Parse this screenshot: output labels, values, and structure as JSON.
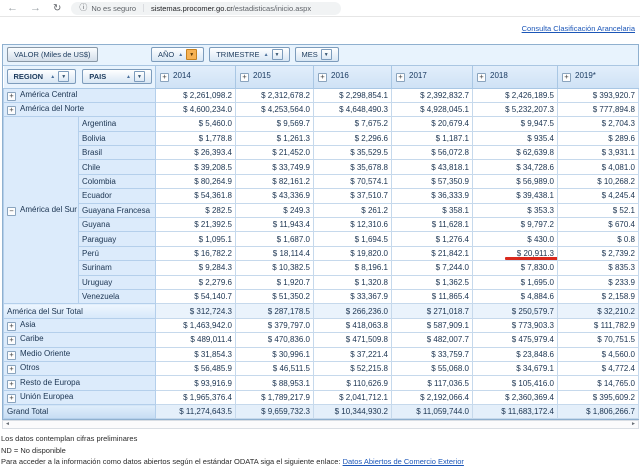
{
  "browser": {
    "security_label": "No es seguro",
    "url_domain": "sistemas.procomer.go.cr",
    "url_path": "/estadisticas/inicio.aspx"
  },
  "top_link": {
    "label": "Consulta Clasificación Arancelaria"
  },
  "filters": {
    "measure_button": "VALOR (Miles de US$)",
    "column_fields": [
      {
        "label": "AÑO",
        "sorted": true,
        "filter_active": true
      },
      {
        "label": "TRIMESTRE",
        "sorted": true,
        "filter_active": false
      },
      {
        "label": "MES",
        "sorted": false,
        "filter_active": false
      }
    ],
    "row_fields": [
      {
        "label": "REGION",
        "sorted": true
      },
      {
        "label": "PAIS",
        "sorted": true
      }
    ]
  },
  "pivot": {
    "columns": [
      "2014",
      "2015",
      "2016",
      "2017",
      "2018",
      "2019*"
    ],
    "rows": [
      {
        "type": "region",
        "label": "América Central",
        "expand_icon": "plus",
        "values": [
          "$ 2,261,098.2",
          "$ 2,312,678.2",
          "$ 2,298,854.1",
          "$ 2,392,832.7",
          "$ 2,426,189.5",
          "$ 393,920.7"
        ]
      },
      {
        "type": "region",
        "label": "América del Norte",
        "expand_icon": "plus",
        "values": [
          "$ 4,600,234.0",
          "$ 4,253,564.0",
          "$ 4,648,490.3",
          "$ 4,928,045.1",
          "$ 5,232,207.3",
          "$ 777,894.8"
        ]
      },
      {
        "type": "country",
        "label": "Argentina",
        "region_cell": {
          "label": "América del Sur",
          "expand_icon": "minus",
          "rowspan": 13
        },
        "values": [
          "$ 5,460.0",
          "$ 9,569.7",
          "$ 7,675.2",
          "$ 20,679.4",
          "$ 9,947.5",
          "$ 2,704.3"
        ]
      },
      {
        "type": "country",
        "label": "Bolivia",
        "values": [
          "$ 1,778.8",
          "$ 1,261.3",
          "$ 2,296.6",
          "$ 1,187.1",
          "$ 935.4",
          "$ 289.6"
        ]
      },
      {
        "type": "country",
        "label": "Brasil",
        "values": [
          "$ 26,393.4",
          "$ 21,452.0",
          "$ 35,529.5",
          "$ 56,072.8",
          "$ 62,639.8",
          "$ 3,931.1"
        ]
      },
      {
        "type": "country",
        "label": "Chile",
        "values": [
          "$ 39,208.5",
          "$ 33,749.9",
          "$ 35,678.8",
          "$ 43,818.1",
          "$ 34,728.6",
          "$ 4,081.0"
        ]
      },
      {
        "type": "country",
        "label": "Colombia",
        "values": [
          "$ 80,264.9",
          "$ 82,161.2",
          "$ 70,574.1",
          "$ 57,350.9",
          "$ 56,989.0",
          "$ 10,268.2"
        ]
      },
      {
        "type": "country",
        "label": "Ecuador",
        "values": [
          "$ 54,361.8",
          "$ 43,336.9",
          "$ 37,510.7",
          "$ 36,333.9",
          "$ 39,438.1",
          "$ 4,245.4"
        ]
      },
      {
        "type": "country",
        "label": "Guayana Francesa",
        "values": [
          "$ 282.5",
          "$ 249.3",
          "$ 261.2",
          "$ 358.1",
          "$ 353.3",
          "$ 52.1"
        ]
      },
      {
        "type": "country",
        "label": "Guyana",
        "values": [
          "$ 21,392.5",
          "$ 11,943.4",
          "$ 12,310.6",
          "$ 11,628.1",
          "$ 9,797.2",
          "$ 670.4"
        ]
      },
      {
        "type": "country",
        "label": "Paraguay",
        "values": [
          "$ 1,095.1",
          "$ 1,687.0",
          "$ 1,694.5",
          "$ 1,276.4",
          "$ 430.0",
          "$ 0.8"
        ]
      },
      {
        "type": "country",
        "label": "Perú",
        "underline_value_index": 4,
        "values": [
          "$ 16,782.2",
          "$ 18,114.4",
          "$ 19,820.0",
          "$ 21,842.1",
          "$ 20,911.3",
          "$ 2,739.2"
        ]
      },
      {
        "type": "country",
        "label": "Surinam",
        "values": [
          "$ 9,284.3",
          "$ 10,382.5",
          "$ 8,196.1",
          "$ 7,244.0",
          "$ 7,830.0",
          "$ 835.3"
        ]
      },
      {
        "type": "country",
        "label": "Uruguay",
        "values": [
          "$ 2,279.6",
          "$ 1,920.7",
          "$ 1,320.8",
          "$ 1,362.5",
          "$ 1,695.0",
          "$ 233.9"
        ]
      },
      {
        "type": "country",
        "label": "Venezuela",
        "values": [
          "$ 54,140.7",
          "$ 51,350.2",
          "$ 33,367.9",
          "$ 11,865.4",
          "$ 4,884.6",
          "$ 2,158.9"
        ]
      },
      {
        "type": "total",
        "label": "América del Sur Total",
        "values": [
          "$ 312,724.3",
          "$ 287,178.5",
          "$ 266,236.0",
          "$ 271,018.7",
          "$ 250,579.7",
          "$ 32,210.2"
        ]
      },
      {
        "type": "region",
        "label": "Asia",
        "expand_icon": "plus",
        "values": [
          "$ 1,463,942.0",
          "$ 379,797.0",
          "$ 418,063.8",
          "$ 587,909.1",
          "$ 773,903.3",
          "$ 111,782.9"
        ]
      },
      {
        "type": "region",
        "label": "Caribe",
        "expand_icon": "plus",
        "values": [
          "$ 489,011.4",
          "$ 470,836.0",
          "$ 471,509.8",
          "$ 482,007.7",
          "$ 475,979.4",
          "$ 70,751.5"
        ]
      },
      {
        "type": "region",
        "label": "Medio Oriente",
        "expand_icon": "plus",
        "values": [
          "$ 31,854.3",
          "$ 30,996.1",
          "$ 37,221.4",
          "$ 33,759.7",
          "$ 23,848.6",
          "$ 4,560.0"
        ]
      },
      {
        "type": "region",
        "label": "Otros",
        "expand_icon": "plus",
        "values": [
          "$ 56,485.9",
          "$ 46,511.5",
          "$ 52,215.8",
          "$ 55,068.0",
          "$ 34,679.1",
          "$ 4,772.4"
        ]
      },
      {
        "type": "region",
        "label": "Resto de Europa",
        "expand_icon": "plus",
        "values": [
          "$ 93,916.9",
          "$ 88,953.1",
          "$ 110,626.9",
          "$ 117,036.5",
          "$ 105,416.0",
          "$ 14,765.0"
        ]
      },
      {
        "type": "region",
        "label": "Unión Europea",
        "expand_icon": "plus",
        "values": [
          "$ 1,965,376.4",
          "$ 1,789,217.9",
          "$ 2,041,712.1",
          "$ 2,192,066.4",
          "$ 2,360,369.4",
          "$ 395,609.2"
        ]
      },
      {
        "type": "grand",
        "label": "Grand Total",
        "values": [
          "$ 11,274,643.5",
          "$ 9,659,732.3",
          "$ 10,344,930.2",
          "$ 11,059,744.0",
          "$ 11,683,172.4",
          "$ 1,806,266.7"
        ]
      }
    ],
    "annotation": {
      "shape": "red-underline",
      "row": "Perú",
      "column": "2018",
      "color": "#d9291d"
    }
  },
  "footnotes": {
    "line1": "Los datos contemplan cifras preliminares",
    "line2": "ND = No disponible",
    "line3_prefix": "Para acceder a la información como datos abiertos según el estándar ODATA siga el siguiente enlace: ",
    "line3_link": "Datos Abiertos de Comercio Exterior"
  },
  "colors": {
    "header_blue": "#cfe2f5",
    "label_blue": "#dcebfb",
    "filter_band": "#e8f3fd",
    "active_filter_orange": "#f6b254",
    "annotation_red": "#d9291d",
    "link_blue": "#1b56b8"
  }
}
